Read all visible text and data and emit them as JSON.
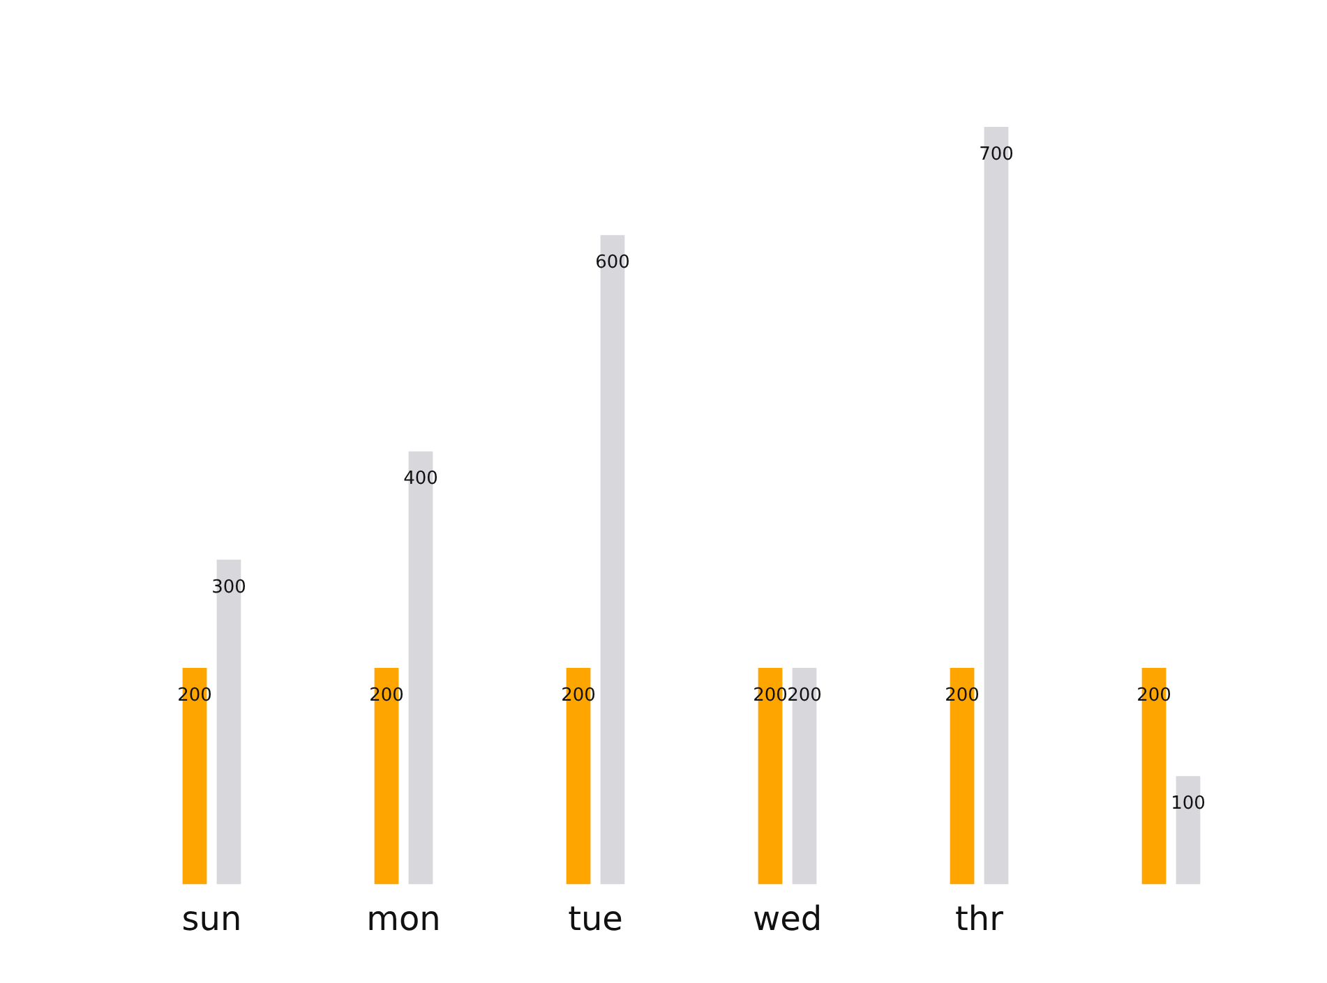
{
  "chart_data": {
    "type": "bar",
    "categories": [
      "sun",
      "mon",
      "tue",
      "wed",
      "thr",
      null
    ],
    "series": [
      {
        "color": "#ffa500",
        "values": [
          200,
          200,
          200,
          200,
          200,
          200
        ]
      },
      {
        "color": "#d8d8dc",
        "values": [
          300,
          400,
          600,
          200,
          700,
          100
        ]
      }
    ],
    "ylim": [
      0,
      700
    ],
    "data_labels": true,
    "grid": false,
    "legend": false,
    "tick_labels": "x"
  }
}
